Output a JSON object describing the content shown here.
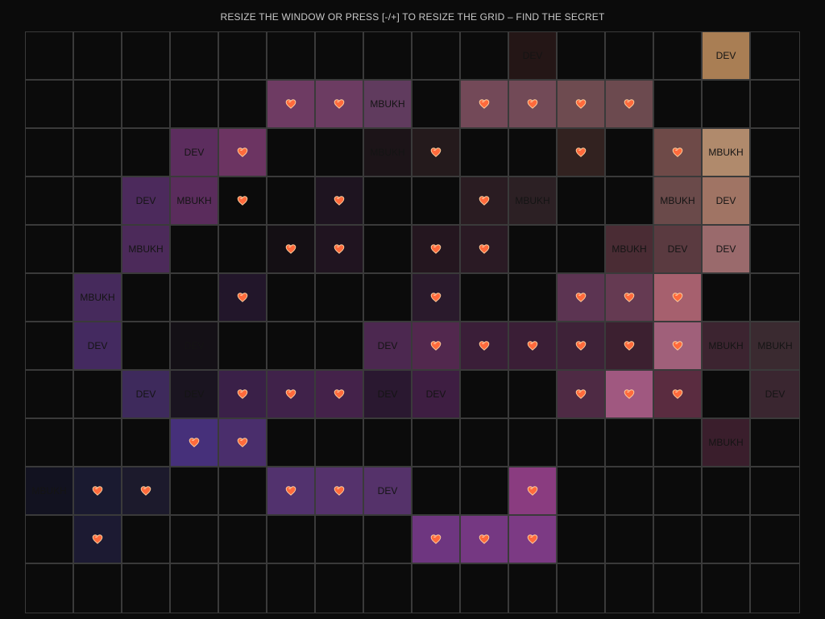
{
  "header": {
    "title": "RESIZE THE WINDOW OR PRESS [-/+] TO RESIZE THE GRID – FIND THE SECRET"
  },
  "grid": {
    "rows": 12,
    "cols": 16,
    "empty_color": "#0b0b0b",
    "grid_line_color": "#3a3a3a",
    "heart_icon": "heart-icon",
    "cells": [
      {
        "r": 0,
        "c": 10,
        "t": "DEV",
        "color": "#241616"
      },
      {
        "r": 0,
        "c": 14,
        "t": "DEV",
        "color": "#a97e54"
      },
      {
        "r": 1,
        "c": 5,
        "h": 1,
        "color": "#6e3b63"
      },
      {
        "r": 1,
        "c": 6,
        "h": 1,
        "color": "#6c3c62"
      },
      {
        "r": 1,
        "c": 7,
        "t": "MBUKH",
        "color": "#603b5e"
      },
      {
        "r": 1,
        "c": 9,
        "h": 1,
        "color": "#734958"
      },
      {
        "r": 1,
        "c": 10,
        "h": 1,
        "color": "#724a57"
      },
      {
        "r": 1,
        "c": 11,
        "h": 1,
        "color": "#6e4b50"
      },
      {
        "r": 1,
        "c": 12,
        "h": 1,
        "color": "#6c4a4f"
      },
      {
        "r": 2,
        "c": 3,
        "t": "DEV",
        "color": "#5c2d5e"
      },
      {
        "r": 2,
        "c": 4,
        "h": 1,
        "color": "#6c3462"
      },
      {
        "r": 2,
        "c": 7,
        "t": "MBUKH",
        "color": "#1c1418"
      },
      {
        "r": 2,
        "c": 8,
        "h": 1,
        "color": "#241a1c"
      },
      {
        "r": 2,
        "c": 11,
        "h": 1,
        "color": "#322220"
      },
      {
        "r": 2,
        "c": 13,
        "h": 1,
        "color": "#6e4a48"
      },
      {
        "r": 2,
        "c": 14,
        "t": "MBUKH",
        "color": "#b08a6c"
      },
      {
        "r": 3,
        "c": 2,
        "t": "DEV",
        "color": "#4c2a5c"
      },
      {
        "r": 3,
        "c": 3,
        "t": "MBUKH",
        "color": "#5a2c5c"
      },
      {
        "r": 3,
        "c": 4,
        "h": 1,
        "color": "#0b0b0b"
      },
      {
        "r": 3,
        "c": 6,
        "h": 1,
        "color": "#1e1420"
      },
      {
        "r": 3,
        "c": 9,
        "h": 1,
        "color": "#2a1c22"
      },
      {
        "r": 3,
        "c": 10,
        "t": "MBUKH",
        "color": "#2c2024"
      },
      {
        "r": 3,
        "c": 13,
        "t": "MBUKH",
        "color": "#6a4a4a"
      },
      {
        "r": 3,
        "c": 14,
        "t": "DEV",
        "color": "#a07464"
      },
      {
        "r": 4,
        "c": 2,
        "t": "MBUKH",
        "color": "#4c2a5a"
      },
      {
        "r": 4,
        "c": 5,
        "h": 1,
        "color": "#140f14"
      },
      {
        "r": 4,
        "c": 6,
        "h": 1,
        "color": "#201420"
      },
      {
        "r": 4,
        "c": 8,
        "h": 1,
        "color": "#24161f"
      },
      {
        "r": 4,
        "c": 9,
        "h": 1,
        "color": "#2a1a24"
      },
      {
        "r": 4,
        "c": 12,
        "t": "MBUKH",
        "color": "#4a2c34"
      },
      {
        "r": 4,
        "c": 13,
        "t": "DEV",
        "color": "#5a3a40"
      },
      {
        "r": 4,
        "c": 14,
        "t": "DEV",
        "color": "#9a6a6c"
      },
      {
        "r": 5,
        "c": 1,
        "t": "MBUKH",
        "color": "#462a5c"
      },
      {
        "r": 5,
        "c": 4,
        "h": 1,
        "color": "#22162a"
      },
      {
        "r": 5,
        "c": 8,
        "h": 1,
        "color": "#2a1a2c"
      },
      {
        "r": 5,
        "c": 11,
        "h": 1,
        "color": "#5c3452"
      },
      {
        "r": 5,
        "c": 12,
        "h": 1,
        "color": "#653a52"
      },
      {
        "r": 5,
        "c": 13,
        "h": 1,
        "color": "#a6606e"
      },
      {
        "r": 6,
        "c": 1,
        "t": "DEV",
        "color": "#442a60"
      },
      {
        "r": 6,
        "c": 3,
        "t": "DEV",
        "color": "#141016"
      },
      {
        "r": 6,
        "c": 7,
        "t": "DEV",
        "color": "#4c2850"
      },
      {
        "r": 6,
        "c": 8,
        "h": 1,
        "color": "#52284e"
      },
      {
        "r": 6,
        "c": 9,
        "h": 1,
        "color": "#3a1e38"
      },
      {
        "r": 6,
        "c": 10,
        "h": 1,
        "color": "#3a1e36"
      },
      {
        "r": 6,
        "c": 11,
        "h": 1,
        "color": "#3e2238"
      },
      {
        "r": 6,
        "c": 12,
        "h": 1,
        "color": "#3c2030"
      },
      {
        "r": 6,
        "c": 13,
        "h": 1,
        "color": "#a0607a"
      },
      {
        "r": 6,
        "c": 14,
        "t": "MBUKH",
        "color": "#3c2430"
      },
      {
        "r": 6,
        "c": 15,
        "t": "MBUKH",
        "color": "#3a2a30"
      },
      {
        "r": 7,
        "c": 2,
        "t": "DEV",
        "color": "#3e2a5c"
      },
      {
        "r": 7,
        "c": 3,
        "t": "DEV",
        "color": "#1a1420"
      },
      {
        "r": 7,
        "c": 4,
        "h": 1,
        "color": "#3a2048"
      },
      {
        "r": 7,
        "c": 5,
        "h": 1,
        "color": "#40224a"
      },
      {
        "r": 7,
        "c": 6,
        "h": 1,
        "color": "#44224a"
      },
      {
        "r": 7,
        "c": 7,
        "t": "DEV",
        "color": "#2a1830"
      },
      {
        "r": 7,
        "c": 8,
        "t": "DEV",
        "color": "#3e1e42"
      },
      {
        "r": 7,
        "c": 11,
        "h": 1,
        "color": "#4e2a44"
      },
      {
        "r": 7,
        "c": 12,
        "h": 1,
        "color": "#a05880"
      },
      {
        "r": 7,
        "c": 13,
        "h": 1,
        "color": "#5a2c40"
      },
      {
        "r": 7,
        "c": 15,
        "t": "DEV",
        "color": "#3a2630"
      },
      {
        "r": 8,
        "c": 3,
        "h": 1,
        "color": "#46307a"
      },
      {
        "r": 8,
        "c": 4,
        "h": 1,
        "color": "#4a2e6c"
      },
      {
        "r": 8,
        "c": 14,
        "t": "MBUKH",
        "color": "#3a1e2c"
      },
      {
        "r": 9,
        "c": 0,
        "t": "MBUKH",
        "color": "#121220"
      },
      {
        "r": 9,
        "c": 1,
        "h": 1,
        "color": "#1a1a30"
      },
      {
        "r": 9,
        "c": 2,
        "h": 1,
        "color": "#1c1a2c"
      },
      {
        "r": 9,
        "c": 5,
        "h": 1,
        "color": "#52326e"
      },
      {
        "r": 9,
        "c": 6,
        "h": 1,
        "color": "#55326c"
      },
      {
        "r": 9,
        "c": 7,
        "t": "DEV",
        "color": "#55326a"
      },
      {
        "r": 9,
        "c": 10,
        "h": 1,
        "color": "#8a3c80"
      },
      {
        "r": 10,
        "c": 1,
        "h": 1,
        "color": "#1c1a32"
      },
      {
        "r": 10,
        "c": 8,
        "h": 1,
        "color": "#6e3680"
      },
      {
        "r": 10,
        "c": 9,
        "h": 1,
        "color": "#753882"
      },
      {
        "r": 10,
        "c": 10,
        "h": 1,
        "color": "#7c3a84"
      }
    ]
  }
}
